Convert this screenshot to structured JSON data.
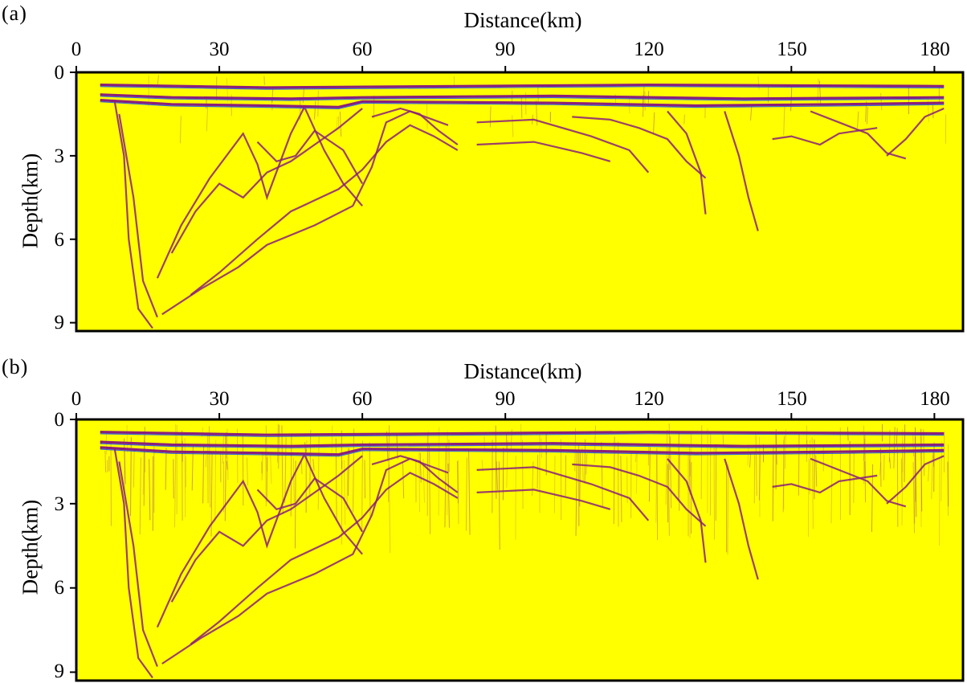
{
  "figures": [
    {
      "id": "a",
      "label": "(a)",
      "x_axis_title": "Distance(km)",
      "y_axis_title": "Depth(km)",
      "x_ticks": [
        "0",
        "30",
        "60",
        "90",
        "120",
        "150",
        "180"
      ],
      "y_ticks": [
        "0",
        "3",
        "6",
        "9"
      ],
      "x_range_km": [
        0,
        186
      ],
      "depth_range_km": [
        0,
        9.3
      ],
      "background_color": "#ffff00",
      "reflector_color": "#8a1f7a",
      "noise_level": 0.25
    },
    {
      "id": "b",
      "label": "(b)",
      "x_axis_title": "Distance(km)",
      "y_axis_title": "Depth(km)",
      "x_ticks": [
        "0",
        "30",
        "60",
        "90",
        "120",
        "150",
        "180"
      ],
      "y_ticks": [
        "0",
        "3",
        "6",
        "9"
      ],
      "x_range_km": [
        0,
        186
      ],
      "depth_range_km": [
        0,
        9.3
      ],
      "background_color": "#ffff00",
      "reflector_color": "#8a1f7a",
      "noise_level": 1.0
    }
  ]
}
